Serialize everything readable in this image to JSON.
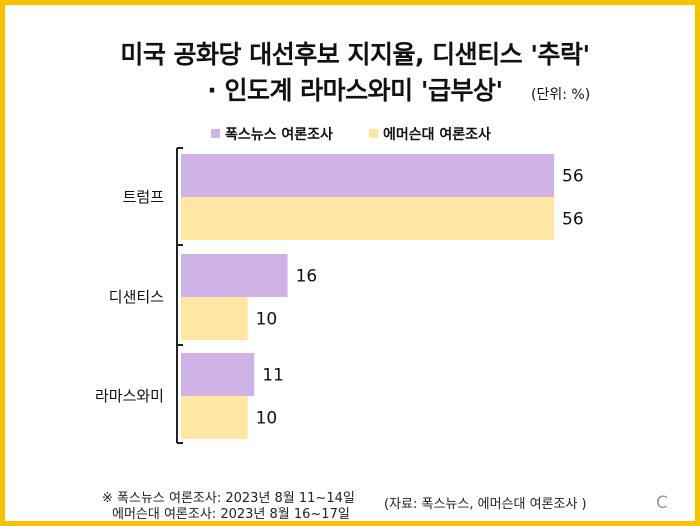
{
  "title_line1": "미국 공화당 대선후보 지지율, 디샌티스 '추락'",
  "title_line2": "· 인도계 라마스와미 '급부상'",
  "unit_label": "(단위: %)",
  "footnote_line1": "※ 폭스뉴스 여론조사: 2023년 8월 11~14일",
  "footnote_line2": "에머슨대 여론조사: 2023년 8월 16~17일",
  "source": "(자료: 폭스뉴스, 에머슨대 여론조사 )",
  "logo": "C",
  "colors": {
    "fox": "#cfb3e6",
    "emerson": "#ffe6a3",
    "border": "#f7c300",
    "axis": "#222222"
  },
  "chart_data": {
    "type": "bar",
    "orientation": "horizontal",
    "categories": [
      "트럼프",
      "디샌티스",
      "라마스와미"
    ],
    "series": [
      {
        "name": "폭스뉴스 여론조사",
        "values": [
          56,
          16,
          11
        ]
      },
      {
        "name": "에머슨대 여론조사",
        "values": [
          56,
          10,
          10
        ]
      }
    ],
    "legend_position": "top",
    "grid": false,
    "xlim": [
      0,
      56
    ]
  }
}
